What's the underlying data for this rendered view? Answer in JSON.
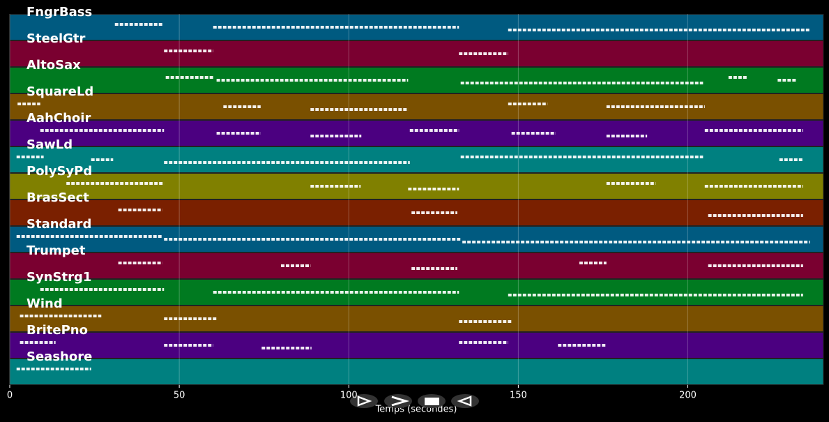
{
  "chart_data": {
    "type": "pianoroll",
    "x_label": "Temps (secondes)",
    "xlim": [
      0,
      240
    ],
    "xticks": [
      0,
      50,
      100,
      150,
      200
    ],
    "grid": true,
    "note_color": "#ffffff",
    "series": [
      {
        "name": "FngrBass",
        "color": "#005a80",
        "segments": [
          [
            31,
            45
          ],
          [
            60,
            132.5
          ],
          [
            147,
            236
          ]
        ]
      },
      {
        "name": "SteelGtr",
        "color": "#7a0030",
        "segments": [
          [
            45.5,
            60
          ],
          [
            132.5,
            147
          ]
        ]
      },
      {
        "name": "AltoSax",
        "color": "#007a20",
        "segments": [
          [
            46,
            60
          ],
          [
            61,
            117.5
          ],
          [
            133,
            204.5
          ],
          [
            212,
            217.5
          ],
          [
            226.5,
            232
          ]
        ]
      },
      {
        "name": "SquareLd",
        "color": "#7a5000",
        "segments": [
          [
            2.3,
            9
          ],
          [
            63,
            74
          ],
          [
            88.7,
            117.5
          ],
          [
            147,
            158.6
          ],
          [
            176,
            205
          ]
        ]
      },
      {
        "name": "AahChoir",
        "color": "#4b0080",
        "segments": [
          [
            9,
            45.5
          ],
          [
            61,
            74
          ],
          [
            88.7,
            103.7
          ],
          [
            118,
            132.5
          ],
          [
            148,
            161
          ],
          [
            176,
            188
          ],
          [
            205,
            234
          ]
        ]
      },
      {
        "name": "SawLd",
        "color": "#008080",
        "segments": [
          [
            2,
            10
          ],
          [
            24,
            30.5
          ],
          [
            45.5,
            118
          ],
          [
            133,
            204.5
          ],
          [
            227,
            234
          ]
        ]
      },
      {
        "name": "PolySyPd",
        "color": "#808000",
        "segments": [
          [
            16.7,
            45.5
          ],
          [
            88.7,
            103.5
          ],
          [
            117.5,
            132.5
          ],
          [
            176,
            190.5
          ],
          [
            205,
            234
          ]
        ]
      },
      {
        "name": "BrasSect",
        "color": "#7a2000",
        "segments": [
          [
            32,
            45
          ],
          [
            118.5,
            132
          ],
          [
            206,
            234
          ]
        ]
      },
      {
        "name": "Standard",
        "color": "#005a80",
        "segments": [
          [
            2,
            45
          ],
          [
            45.5,
            133
          ],
          [
            133.5,
            236
          ]
        ]
      },
      {
        "name": "Trumpet",
        "color": "#7a0030",
        "segments": [
          [
            32,
            45
          ],
          [
            80,
            88.7
          ],
          [
            118.5,
            132
          ],
          [
            168,
            176
          ],
          [
            206,
            234
          ]
        ]
      },
      {
        "name": "SynStrg1",
        "color": "#007a20",
        "segments": [
          [
            9,
            45.5
          ],
          [
            60,
            132.5
          ],
          [
            147,
            234
          ]
        ]
      },
      {
        "name": "Wind",
        "color": "#7a5000",
        "segments": [
          [
            3,
            27
          ],
          [
            45.5,
            61
          ],
          [
            132.5,
            148
          ]
        ]
      },
      {
        "name": "BritePno",
        "color": "#4b0080",
        "segments": [
          [
            3,
            13.5
          ],
          [
            45.5,
            60
          ],
          [
            74.3,
            89
          ],
          [
            132.5,
            147
          ],
          [
            161.7,
            175.7
          ]
        ]
      },
      {
        "name": "Seashore",
        "color": "#008080",
        "segments": [
          [
            2,
            24
          ]
        ]
      }
    ]
  }
}
